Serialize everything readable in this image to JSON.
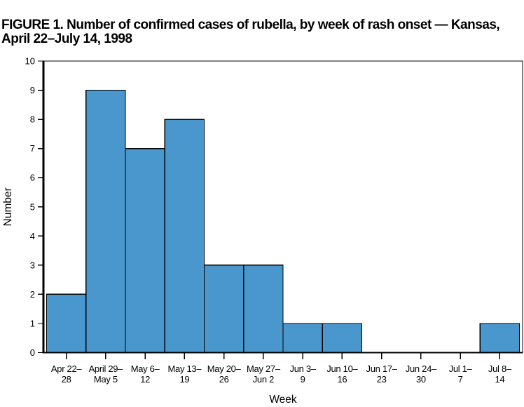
{
  "figure": {
    "title_line1": "FIGURE 1. Number of confirmed cases of rubella, by week of rash onset — Kansas,",
    "title_line2": "April 22–July 14, 1998"
  },
  "chart_data": {
    "type": "bar",
    "title": "FIGURE 1. Number of confirmed cases of rubella, by week of rash onset — Kansas, April 22–July 14, 1998",
    "xlabel": "Week",
    "ylabel": "Number",
    "categories": [
      [
        "Apr 22–",
        "28"
      ],
      [
        "April 29–",
        "May 5"
      ],
      [
        "May 6–",
        "12"
      ],
      [
        "May 13–",
        "19"
      ],
      [
        "May 20–",
        "26"
      ],
      [
        "May 27–",
        "Jun 2"
      ],
      [
        "Jun 3–",
        "9"
      ],
      [
        "Jun 10–",
        "16"
      ],
      [
        "Jun 17–",
        "23"
      ],
      [
        "Jun 24–",
        "30"
      ],
      [
        "Jul 1–",
        "7"
      ],
      [
        "Jul 8–",
        "14"
      ]
    ],
    "values": [
      2,
      9,
      7,
      8,
      3,
      3,
      1,
      1,
      0,
      0,
      0,
      1
    ],
    "ylim": [
      0,
      10
    ],
    "yticks": [
      0,
      1,
      2,
      3,
      4,
      5,
      6,
      7,
      8,
      9,
      10
    ],
    "grid": false,
    "legend_position": "none",
    "bar_gap": 0,
    "colors": {
      "bar_fill": "#4A97CE",
      "bar_stroke": "#000000",
      "axis": "#000000",
      "background": "#FFFFFF"
    }
  }
}
